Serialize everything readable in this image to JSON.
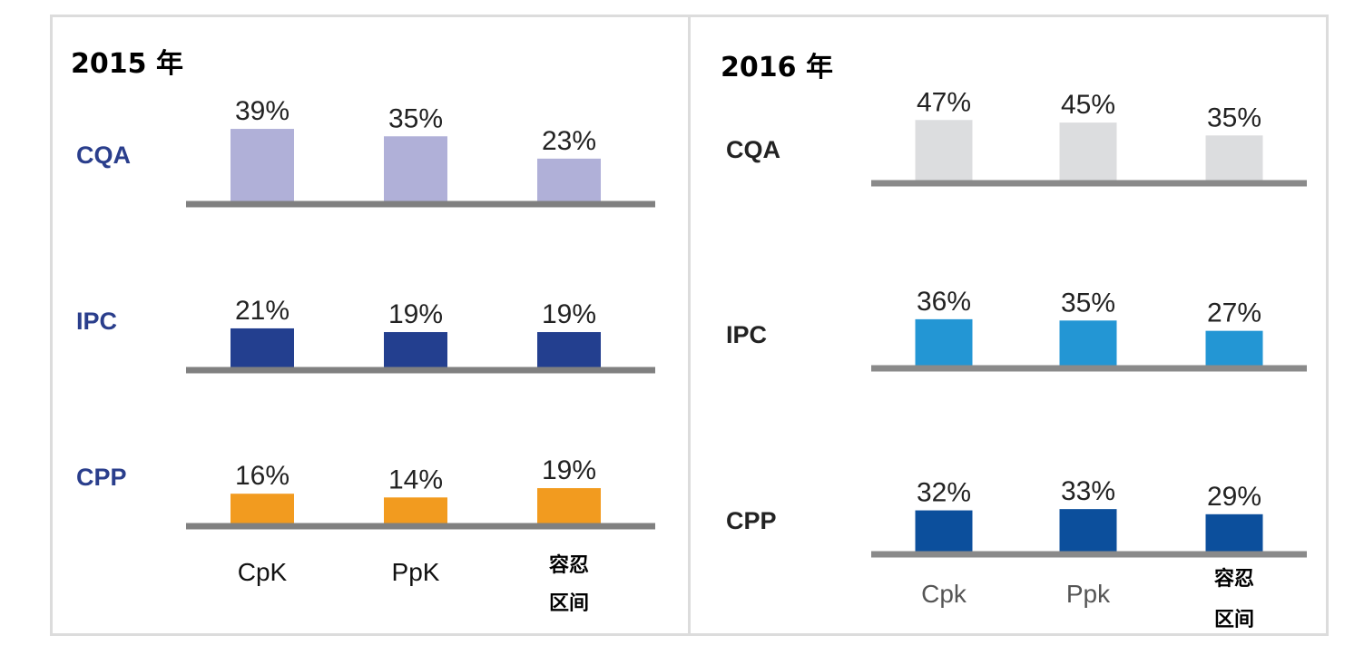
{
  "chart_data": [
    {
      "type": "bar",
      "title": "2015 年",
      "categories": [
        "CpK",
        "PpK",
        "容忍区间"
      ],
      "category_lines": [
        [
          "CpK"
        ],
        [
          "PpK"
        ],
        [
          "容忍",
          "区间"
        ]
      ],
      "series": [
        {
          "name": "CQA",
          "values": [
            "39%",
            "35%",
            "23%"
          ],
          "numeric": [
            39,
            35,
            23
          ],
          "color": "#b0b0d8"
        },
        {
          "name": "IPC",
          "values": [
            "21%",
            "19%",
            "19%"
          ],
          "numeric": [
            21,
            19,
            19
          ],
          "color": "#233f8f"
        },
        {
          "name": "CPP",
          "values": [
            "16%",
            "14%",
            "19%"
          ],
          "numeric": [
            16,
            14,
            19
          ],
          "color": "#f29b1f"
        }
      ],
      "row_label_color": "#2a3e8c",
      "category_color": "#111111",
      "baseline_color": "#808080"
    },
    {
      "type": "bar",
      "title": "2016 年",
      "categories": [
        "Cpk",
        "Ppk",
        "容忍区间"
      ],
      "category_lines": [
        [
          "Cpk"
        ],
        [
          "Ppk"
        ],
        [
          "容忍",
          "区间"
        ]
      ],
      "series": [
        {
          "name": "CQA",
          "values": [
            "47%",
            "45%",
            "35%"
          ],
          "numeric": [
            47,
            45,
            35
          ],
          "color": "#dcdddf"
        },
        {
          "name": "IPC",
          "values": [
            "36%",
            "35%",
            "27%"
          ],
          "numeric": [
            36,
            35,
            27
          ],
          "color": "#2396d4"
        },
        {
          "name": "CPP",
          "values": [
            "32%",
            "33%",
            "29%"
          ],
          "numeric": [
            32,
            33,
            29
          ],
          "color": "#0c4f9c"
        }
      ],
      "row_label_color": "#222222",
      "category_color": "#555555",
      "baseline_color": "#8a8a8a"
    }
  ]
}
